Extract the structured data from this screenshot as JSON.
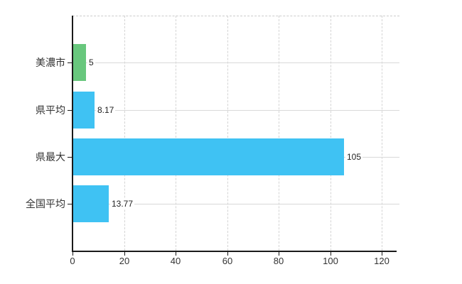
{
  "chart_data": {
    "type": "bar",
    "orientation": "horizontal",
    "title": "",
    "xlabel": "",
    "ylabel": "",
    "categories": [
      "美濃市",
      "県平均",
      "県最大",
      "全国平均"
    ],
    "values": [
      5,
      8.17,
      105,
      13.77
    ],
    "value_labels": [
      "5",
      "8.17",
      "105",
      "13.77"
    ],
    "bar_colors": [
      "#68c77d",
      "#3fc2f3",
      "#3fc2f3",
      "#3fc2f3"
    ],
    "x_ticks": [
      0,
      20,
      40,
      60,
      80,
      100,
      120
    ],
    "xlim": [
      0,
      127
    ],
    "grid": true,
    "legend": false
  },
  "colors": {
    "background": "#ffffff",
    "bar_green": "#68c77d",
    "bar_blue": "#3fc2f3",
    "axis": "#1a1a1a",
    "grid_horizontal": "#d9d9d9",
    "grid_vertical": "#d4d4d4",
    "plot_top_border": "#cccccc",
    "tick_text": "#333333",
    "value_text": "#222222"
  }
}
